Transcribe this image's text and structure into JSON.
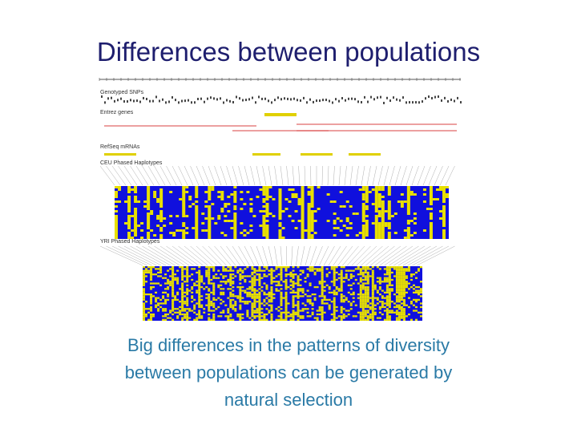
{
  "title": "Differences between populations",
  "figure": {
    "tracks": [
      "Genotyped SNPs",
      "Entrez genes",
      "RefSeq mRNAs",
      "CEU Phased Haplotypes",
      "YRI Phased Haplotypes"
    ]
  },
  "caption": [
    "Big differences in the patterns of diversity",
    "between populations can be generated by",
    "natural selection"
  ]
}
